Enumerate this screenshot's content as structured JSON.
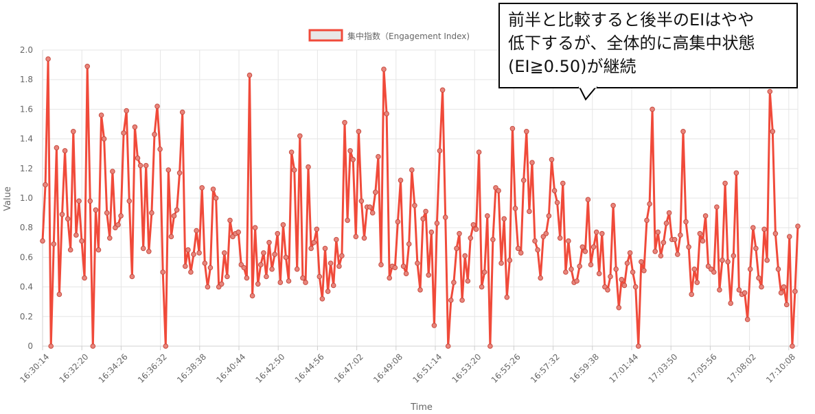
{
  "chart_data": {
    "type": "line",
    "xlabel": "Time",
    "ylabel": "Value",
    "ylim": [
      0,
      2.0
    ],
    "yticks": [
      "0",
      "0.2",
      "0.4",
      "0.6",
      "0.8",
      "1.0",
      "1.2",
      "1.4",
      "1.6",
      "1.8",
      "2.0"
    ],
    "x_tick_labels": [
      "16:30:14",
      "16:32:20",
      "16:34:26",
      "16:36:32",
      "16:38:38",
      "16:40:44",
      "16:42:50",
      "16:44:56",
      "16:47:02",
      "16:49:08",
      "16:51:14",
      "16:53:20",
      "16:55:26",
      "16:57:32",
      "16:59:38",
      "17:01:44",
      "17:03:50",
      "17:05:56",
      "17:08:02",
      "17:10:08"
    ],
    "x_start": "16:30:14",
    "x_end": "17:10:50",
    "grid": true,
    "legend_position": "top",
    "series": [
      {
        "name": "集中指数（Engagement Index)",
        "color": "#f04a3a",
        "values": [
          0.71,
          1.09,
          1.94,
          0.0,
          0.69,
          1.34,
          0.35,
          0.89,
          1.32,
          0.86,
          0.65,
          1.45,
          0.75,
          0.98,
          0.71,
          0.46,
          1.89,
          0.98,
          0.0,
          0.92,
          0.65,
          1.56,
          1.4,
          0.9,
          0.73,
          1.18,
          0.8,
          0.82,
          0.88,
          1.44,
          1.59,
          0.98,
          0.47,
          1.48,
          1.27,
          1.22,
          0.66,
          1.22,
          0.64,
          0.9,
          1.43,
          1.62,
          1.33,
          0.5,
          0.0,
          1.19,
          0.74,
          0.88,
          0.92,
          1.17,
          1.58,
          0.54,
          0.65,
          0.5,
          0.62,
          0.78,
          0.63,
          1.07,
          0.56,
          0.4,
          0.53,
          1.06,
          1.0,
          0.4,
          0.42,
          0.63,
          0.47,
          0.85,
          0.74,
          0.76,
          0.77,
          0.55,
          0.53,
          0.46,
          1.83,
          0.34,
          0.8,
          0.42,
          0.55,
          0.63,
          0.47,
          0.7,
          0.52,
          0.62,
          0.76,
          0.43,
          0.82,
          0.6,
          0.44,
          1.31,
          1.19,
          0.52,
          1.42,
          0.46,
          0.43,
          1.21,
          0.66,
          0.7,
          0.79,
          0.47,
          0.32,
          0.66,
          0.37,
          0.56,
          0.41,
          0.72,
          0.54,
          0.61,
          1.51,
          0.85,
          1.32,
          1.26,
          0.74,
          1.45,
          0.98,
          0.73,
          0.94,
          0.94,
          0.9,
          1.04,
          1.28,
          0.55,
          1.87,
          1.57,
          0.46,
          0.54,
          0.53,
          0.84,
          1.12,
          0.54,
          0.49,
          0.69,
          1.19,
          0.95,
          0.56,
          0.38,
          0.86,
          0.91,
          0.48,
          0.77,
          0.14,
          0.83,
          1.32,
          1.73,
          0.87,
          0.0,
          0.31,
          0.43,
          0.66,
          0.76,
          0.31,
          0.61,
          0.44,
          0.73,
          0.82,
          0.79,
          1.31,
          0.4,
          0.5,
          0.88,
          0.0,
          0.72,
          1.07,
          1.05,
          0.56,
          0.86,
          0.33,
          0.58,
          1.47,
          0.93,
          0.66,
          0.63,
          1.12,
          1.45,
          0.91,
          1.24,
          0.71,
          0.65,
          0.46,
          0.74,
          0.76,
          0.88,
          1.26,
          1.05,
          0.97,
          0.73,
          1.1,
          0.5,
          0.71,
          0.52,
          0.43,
          0.44,
          0.54,
          0.67,
          0.64,
          0.99,
          0.55,
          0.67,
          0.77,
          0.49,
          0.76,
          0.4,
          0.38,
          0.47,
          0.95,
          0.52,
          0.26,
          0.45,
          0.41,
          0.56,
          0.63,
          0.5,
          0.4,
          0.0,
          0.57,
          0.51,
          0.85,
          0.96,
          1.6,
          0.64,
          0.77,
          0.61,
          0.7,
          0.83,
          0.9,
          0.72,
          0.72,
          0.62,
          0.75,
          1.45,
          0.84,
          0.67,
          0.35,
          0.52,
          0.43,
          0.76,
          0.71,
          0.88,
          0.54,
          0.52,
          0.5,
          0.94,
          0.38,
          0.58,
          1.1,
          0.57,
          0.29,
          0.61,
          1.17,
          0.38,
          0.35,
          0.36,
          0.18,
          0.52,
          0.8,
          0.66,
          0.46,
          0.4,
          0.79,
          0.58,
          1.72,
          1.45,
          0.76,
          0.52,
          0.36,
          0.4,
          0.28,
          0.74,
          0.0,
          0.37,
          0.81
        ]
      }
    ]
  },
  "callout": {
    "lines": [
      "前半と比較すると後半のEIはやや",
      "低下するが、全体的に高集中状態",
      "(EI≧0.50)が継続"
    ]
  }
}
